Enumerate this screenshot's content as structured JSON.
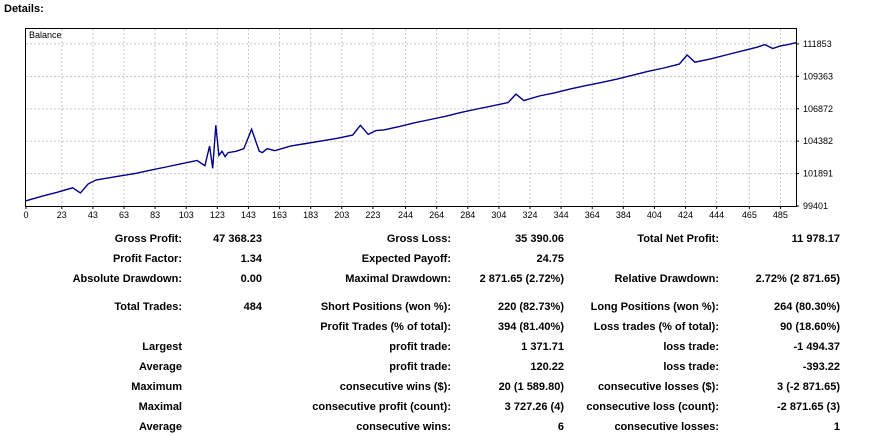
{
  "header": {
    "title": "Details:"
  },
  "chart_data": {
    "type": "line",
    "title": "",
    "legend": "Balance",
    "xlabel": "",
    "ylabel": "",
    "xlim": [
      0,
      495
    ],
    "ylim": [
      99401,
      113000
    ],
    "x_ticks": [
      "0",
      "23",
      "43",
      "63",
      "83",
      "103",
      "123",
      "143",
      "163",
      "183",
      "203",
      "223",
      "244",
      "264",
      "284",
      "304",
      "324",
      "344",
      "364",
      "384",
      "404",
      "424",
      "444",
      "465",
      "485"
    ],
    "y_ticks": [
      "111853",
      "109363",
      "106872",
      "104382",
      "101891",
      "99401"
    ],
    "grid": true,
    "line_color": "#00008b",
    "series": [
      {
        "x": [
          0,
          10,
          20,
          30,
          35,
          40,
          45,
          50,
          60,
          70,
          80,
          90,
          100,
          110,
          115,
          118,
          120,
          122,
          124,
          126,
          128,
          130,
          135,
          140,
          145,
          150,
          152,
          155,
          160,
          170,
          180,
          190,
          200,
          210,
          215,
          220,
          225,
          230,
          240,
          250,
          260,
          270,
          280,
          290,
          300,
          310,
          315,
          320,
          330,
          340,
          350,
          360,
          370,
          380,
          390,
          400,
          410,
          420,
          425,
          430,
          440,
          450,
          460,
          470,
          475,
          480,
          485,
          490,
          495
        ],
        "values": [
          99800,
          100150,
          100450,
          100800,
          100400,
          101100,
          101400,
          101500,
          101700,
          101900,
          102150,
          102400,
          102650,
          102900,
          102500,
          104000,
          102300,
          105600,
          103300,
          103600,
          103200,
          103500,
          103600,
          103800,
          105300,
          103600,
          103500,
          103800,
          103650,
          104000,
          104200,
          104400,
          104600,
          104850,
          105600,
          104900,
          105200,
          105250,
          105500,
          105800,
          106050,
          106300,
          106600,
          106850,
          107100,
          107350,
          108000,
          107500,
          107850,
          108100,
          108400,
          108650,
          108900,
          109150,
          109450,
          109750,
          110000,
          110300,
          111000,
          110450,
          110700,
          111000,
          111300,
          111600,
          111800,
          111500,
          111700,
          111800,
          111950
        ]
      }
    ]
  },
  "stats": {
    "gross_profit": {
      "label": "Gross Profit:",
      "value": "47 368.23"
    },
    "gross_loss": {
      "label": "Gross Loss:",
      "value": "35 390.06"
    },
    "total_net_profit": {
      "label": "Total Net Profit:",
      "value": "11 978.17"
    },
    "profit_factor": {
      "label": "Profit Factor:",
      "value": "1.34"
    },
    "expected_payoff": {
      "label": "Expected Payoff:",
      "value": "24.75"
    },
    "absolute_drawdown": {
      "label": "Absolute Drawdown:",
      "value": "0.00"
    },
    "maximal_drawdown": {
      "label": "Maximal Drawdown:",
      "value": "2 871.65 (2.72%)"
    },
    "relative_drawdown": {
      "label": "Relative Drawdown:",
      "value": "2.72% (2 871.65)"
    },
    "total_trades": {
      "label": "Total Trades:",
      "value": "484"
    },
    "short_positions": {
      "label": "Short Positions (won %):",
      "value": "220 (82.73%)"
    },
    "long_positions": {
      "label": "Long Positions (won %):",
      "value": "264 (80.30%)"
    },
    "profit_trades": {
      "label": "Profit Trades (% of total):",
      "value": "394 (81.40%)"
    },
    "loss_trades": {
      "label": "Loss trades (% of total):",
      "value": "90 (18.60%)"
    },
    "largest": {
      "label": "Largest",
      "profit_label": "profit trade:",
      "profit_value": "1 371.71",
      "loss_label": "loss trade:",
      "loss_value": "-1 494.37"
    },
    "average": {
      "label": "Average",
      "profit_label": "profit trade:",
      "profit_value": "120.22",
      "loss_label": "loss trade:",
      "loss_value": "-393.22"
    },
    "maximum": {
      "label": "Maximum",
      "profit_label": "consecutive wins ($):",
      "profit_value": "20 (1 589.80)",
      "loss_label": "consecutive losses ($):",
      "loss_value": "3 (-2 871.65)"
    },
    "maximal": {
      "label": "Maximal",
      "profit_label": "consecutive profit (count):",
      "profit_value": "3 727.26 (4)",
      "loss_label": "consecutive loss (count):",
      "loss_value": "-2 871.65 (3)"
    },
    "average_consec": {
      "label": "Average",
      "profit_label": "consecutive wins:",
      "profit_value": "6",
      "loss_label": "consecutive losses:",
      "loss_value": "1"
    }
  }
}
